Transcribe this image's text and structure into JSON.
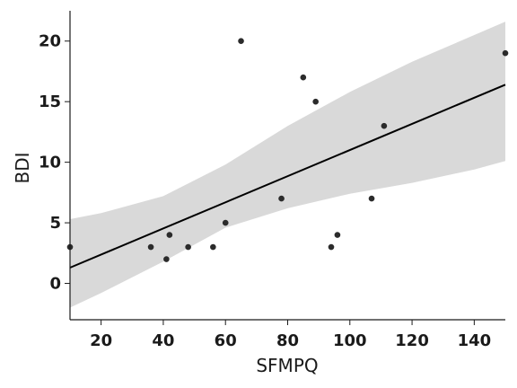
{
  "chart_data": {
    "type": "scatter",
    "title": "",
    "xlabel": "SFMPQ",
    "ylabel": "BDI",
    "xlim": [
      10,
      150
    ],
    "ylim": [
      -3,
      22.5
    ],
    "xticks": [
      20,
      40,
      60,
      80,
      100,
      120,
      140
    ],
    "yticks": [
      0,
      5,
      10,
      15,
      20
    ],
    "grid": false,
    "points": [
      {
        "x": 10,
        "y": 3
      },
      {
        "x": 36,
        "y": 3
      },
      {
        "x": 41,
        "y": 2
      },
      {
        "x": 42,
        "y": 4
      },
      {
        "x": 48,
        "y": 3
      },
      {
        "x": 56,
        "y": 3
      },
      {
        "x": 60,
        "y": 5
      },
      {
        "x": 65,
        "y": 20
      },
      {
        "x": 78,
        "y": 7
      },
      {
        "x": 85,
        "y": 17
      },
      {
        "x": 89,
        "y": 15
      },
      {
        "x": 94,
        "y": 3
      },
      {
        "x": 96,
        "y": 4
      },
      {
        "x": 107,
        "y": 7
      },
      {
        "x": 111,
        "y": 13
      },
      {
        "x": 150,
        "y": 19
      }
    ],
    "regression": {
      "x": [
        10,
        150
      ],
      "y": [
        1.3,
        16.4
      ]
    },
    "confidence_band": {
      "x": [
        10,
        20,
        40,
        60,
        80,
        100,
        120,
        140,
        150
      ],
      "upper": [
        5.3,
        5.8,
        7.2,
        9.8,
        13.0,
        15.8,
        18.3,
        20.5,
        21.6
      ],
      "lower": [
        -2.0,
        -0.8,
        1.8,
        4.6,
        6.2,
        7.4,
        8.3,
        9.4,
        10.1
      ]
    },
    "colors": {
      "points": "#2b2b2b",
      "line": "#000000",
      "band": "#d9d9d9"
    }
  }
}
